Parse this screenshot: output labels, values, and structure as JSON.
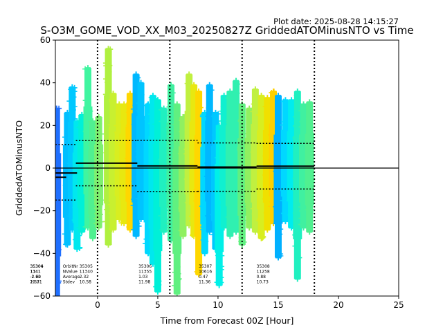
{
  "chart_data": {
    "type": "scatter",
    "plot_date": "Plot date: 2025-08-28 14:15:27",
    "title": "S-O3M_GOME_VOD_XX_M03_20250827Z GriddedATOMinusNTO vs Time",
    "xlabel": "Time from Forecast 00Z [Hour]",
    "ylabel": "GriddedATOMinusNTO",
    "xlim": [
      -3.5,
      25
    ],
    "ylim": [
      -60,
      60
    ],
    "xticks": [
      0,
      5,
      10,
      15,
      20,
      25
    ],
    "yticks": [
      -60,
      -40,
      -20,
      0,
      20,
      40,
      60
    ],
    "grid": false,
    "legend": "none",
    "forecast_boundaries": [
      0,
      6,
      12,
      18
    ],
    "zero_line": 0,
    "stats_labels": [
      "OrbitNr",
      "NValue",
      "Average",
      "Stdev"
    ],
    "orbit_stats": [
      {
        "x": -3.3,
        "orbit": "35304",
        "n": "1141",
        "avg": "-2.90",
        "sd": "2.63"
      },
      {
        "x": -3.3,
        "orbit": "35306",
        "n": "1341",
        "avg": "-1.62",
        "sd": "10.71"
      },
      {
        "x": -1.5,
        "orbit": "35305",
        "n": "11340",
        "avg": "2.32",
        "sd": "10.58"
      },
      {
        "x": 3.4,
        "orbit": "35306",
        "n": "11355",
        "avg": "1.03",
        "sd": "11.98"
      },
      {
        "x": 8.4,
        "orbit": "35307",
        "n": "10616",
        "avg": "0.47",
        "sd": "11.36"
      },
      {
        "x": 13.2,
        "orbit": "35308",
        "n": "11258",
        "avg": "0.88",
        "sd": "10.73"
      }
    ],
    "mean_segments": [
      {
        "x": [
          -3.5,
          -1.7
        ],
        "y": -2.3
      },
      {
        "x": [
          -3.5,
          -2.6
        ],
        "y": -4.3
      },
      {
        "x": [
          -1.8,
          3.3
        ],
        "y": 2.3
      },
      {
        "x": [
          3.3,
          8.3
        ],
        "y": 1.0
      },
      {
        "x": [
          8.3,
          13.2
        ],
        "y": 0.5
      },
      {
        "x": [
          13.2,
          18.0
        ],
        "y": 0.9
      }
    ],
    "stdev_segments": [
      {
        "x": [
          -3.5,
          -1.7
        ],
        "y": 11.0
      },
      {
        "x": [
          -3.5,
          -1.7
        ],
        "y": -15.0
      },
      {
        "x": [
          -1.8,
          3.3
        ],
        "y": 12.9
      },
      {
        "x": [
          -1.8,
          3.3
        ],
        "y": -8.3
      },
      {
        "x": [
          3.3,
          8.3
        ],
        "y": 13.0
      },
      {
        "x": [
          3.3,
          8.3
        ],
        "y": -11.0
      },
      {
        "x": [
          8.3,
          13.2
        ],
        "y": 11.8
      },
      {
        "x": [
          8.3,
          13.2
        ],
        "y": -10.9
      },
      {
        "x": [
          13.2,
          18.0
        ],
        "y": 11.6
      },
      {
        "x": [
          13.2,
          18.0
        ],
        "y": -9.8
      }
    ],
    "columns": [
      {
        "x": -3.4,
        "ymin": -60,
        "ymax": 28,
        "color": "#1f6fff"
      },
      {
        "x": -2.5,
        "ymin": -36,
        "ymax": 26,
        "color": "#00bfff"
      },
      {
        "x": -2.1,
        "ymin": -29,
        "ymax": 38,
        "color": "#00c8ff"
      },
      {
        "x": -1.7,
        "ymin": -38,
        "ymax": 22,
        "color": "#00e8ee"
      },
      {
        "x": -1.3,
        "ymin": -30,
        "ymax": 25,
        "color": "#00f0d8"
      },
      {
        "x": -0.8,
        "ymin": -28,
        "ymax": 47,
        "color": "#40f5a0"
      },
      {
        "x": -0.4,
        "ymin": -33,
        "ymax": 22,
        "color": "#50f090"
      },
      {
        "x": 0.1,
        "ymin": -28,
        "ymax": 24,
        "color": "#7ff070"
      },
      {
        "x": 0.9,
        "ymin": -36,
        "ymax": 56,
        "color": "#b0f040"
      },
      {
        "x": 1.3,
        "ymin": -29,
        "ymax": 35,
        "color": "#c8f030"
      },
      {
        "x": 1.8,
        "ymin": -24,
        "ymax": 30,
        "color": "#d8ee20"
      },
      {
        "x": 2.2,
        "ymin": -26,
        "ymax": 30,
        "color": "#e8e810"
      },
      {
        "x": 2.7,
        "ymin": -29,
        "ymax": 35,
        "color": "#ffd700"
      },
      {
        "x": 3.2,
        "ymin": -32,
        "ymax": 44,
        "color": "#00b8ff"
      },
      {
        "x": 3.6,
        "ymin": -24,
        "ymax": 40,
        "color": "#00c4ff"
      },
      {
        "x": 4.2,
        "ymin": -40,
        "ymax": 30,
        "color": "#00d8ff"
      },
      {
        "x": 4.6,
        "ymin": -45,
        "ymax": 34,
        "color": "#00e8ee"
      },
      {
        "x": 5.0,
        "ymin": -58,
        "ymax": 32,
        "color": "#00f0d8"
      },
      {
        "x": 5.5,
        "ymin": -30,
        "ymax": 28,
        "color": "#20f0c0"
      },
      {
        "x": 6.1,
        "ymin": -34,
        "ymax": 39,
        "color": "#40f0a0"
      },
      {
        "x": 6.6,
        "ymin": -59,
        "ymax": 30,
        "color": "#60f080"
      },
      {
        "x": 7.1,
        "ymin": -32,
        "ymax": 24,
        "color": "#90f060"
      },
      {
        "x": 7.6,
        "ymin": -27,
        "ymax": 44,
        "color": "#c0f040"
      },
      {
        "x": 8.0,
        "ymin": -32,
        "ymax": 39,
        "color": "#e8e810"
      },
      {
        "x": 8.4,
        "ymin": -50,
        "ymax": 36,
        "color": "#ffd700"
      },
      {
        "x": 8.9,
        "ymin": -40,
        "ymax": 26,
        "color": "#00d8ff"
      },
      {
        "x": 9.3,
        "ymin": -30,
        "ymax": 39,
        "color": "#00b8ff"
      },
      {
        "x": 9.8,
        "ymin": -38,
        "ymax": 26,
        "color": "#00c8ff"
      },
      {
        "x": 10.1,
        "ymin": -55,
        "ymax": 20,
        "color": "#00f0e8"
      },
      {
        "x": 10.5,
        "ymin": -28,
        "ymax": 34,
        "color": "#10f0d0"
      },
      {
        "x": 11.0,
        "ymin": -32,
        "ymax": 36,
        "color": "#30f0b0"
      },
      {
        "x": 11.5,
        "ymin": -30,
        "ymax": 41,
        "color": "#30f0b0"
      },
      {
        "x": 12.0,
        "ymin": -36,
        "ymax": 30,
        "color": "#60f080"
      },
      {
        "x": 12.6,
        "ymin": -28,
        "ymax": 28,
        "color": "#90f060"
      },
      {
        "x": 13.1,
        "ymin": -30,
        "ymax": 37,
        "color": "#c0f040"
      },
      {
        "x": 13.6,
        "ymin": -33,
        "ymax": 34,
        "color": "#d8ee20"
      },
      {
        "x": 14.1,
        "ymin": -29,
        "ymax": 33,
        "color": "#f0e000"
      },
      {
        "x": 14.6,
        "ymin": -26,
        "ymax": 36,
        "color": "#ffd000"
      },
      {
        "x": 15.0,
        "ymin": -42,
        "ymax": 34,
        "color": "#00b0ff"
      },
      {
        "x": 15.6,
        "ymin": -25,
        "ymax": 32,
        "color": "#00d8ff"
      },
      {
        "x": 16.1,
        "ymin": -28,
        "ymax": 32,
        "color": "#00ecef"
      },
      {
        "x": 16.6,
        "ymin": -52,
        "ymax": 36,
        "color": "#20f0c0"
      },
      {
        "x": 17.1,
        "ymin": -28,
        "ymax": 30,
        "color": "#40f0a0"
      },
      {
        "x": 17.6,
        "ymin": -30,
        "ymax": 31,
        "color": "#50f090"
      }
    ]
  }
}
